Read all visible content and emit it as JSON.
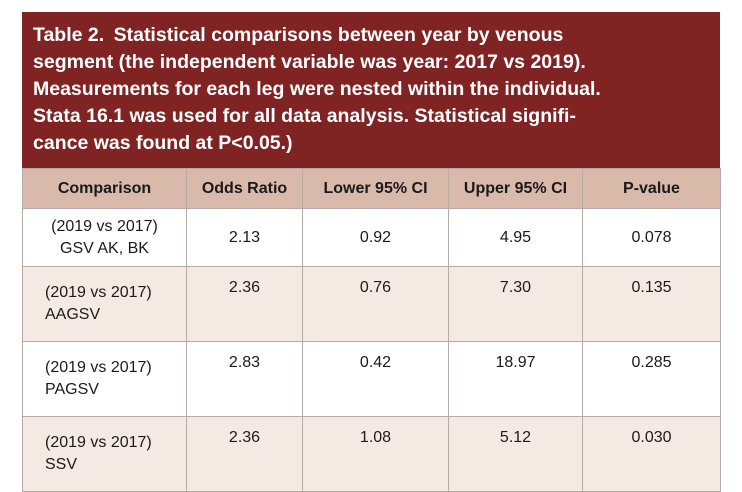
{
  "caption": {
    "label": "Table 2.",
    "lines": [
      "Statistical comparisons between year by venous",
      "segment (the independent variable was year: 2017 vs 2019).",
      "Measurements for each leg were nested within the individual.",
      "Stata 16.1 was used for all data analysis. Statistical signifi-",
      "cance was found at P<0.05.)"
    ]
  },
  "table": {
    "columns": [
      "Comparison",
      "Odds Ratio",
      "Lower 95% CI",
      "Upper 95% CI",
      "P-value"
    ],
    "rows": [
      [
        [
          "(2019 vs 2017)",
          "GSV AK, BK"
        ],
        "2.13",
        "0.92",
        "4.95",
        "0.078"
      ],
      [
        [
          "(2019 vs 2017)",
          "AAGSV"
        ],
        "2.36",
        "0.76",
        "7.30",
        "0.135"
      ],
      [
        [
          "(2019 vs 2017)",
          "PAGSV"
        ],
        "2.83",
        "0.42",
        "18.97",
        "0.285"
      ],
      [
        [
          "(2019 vs 2017)",
          "SSV"
        ],
        "2.36",
        "1.08",
        "5.12",
        "0.030"
      ]
    ]
  }
}
